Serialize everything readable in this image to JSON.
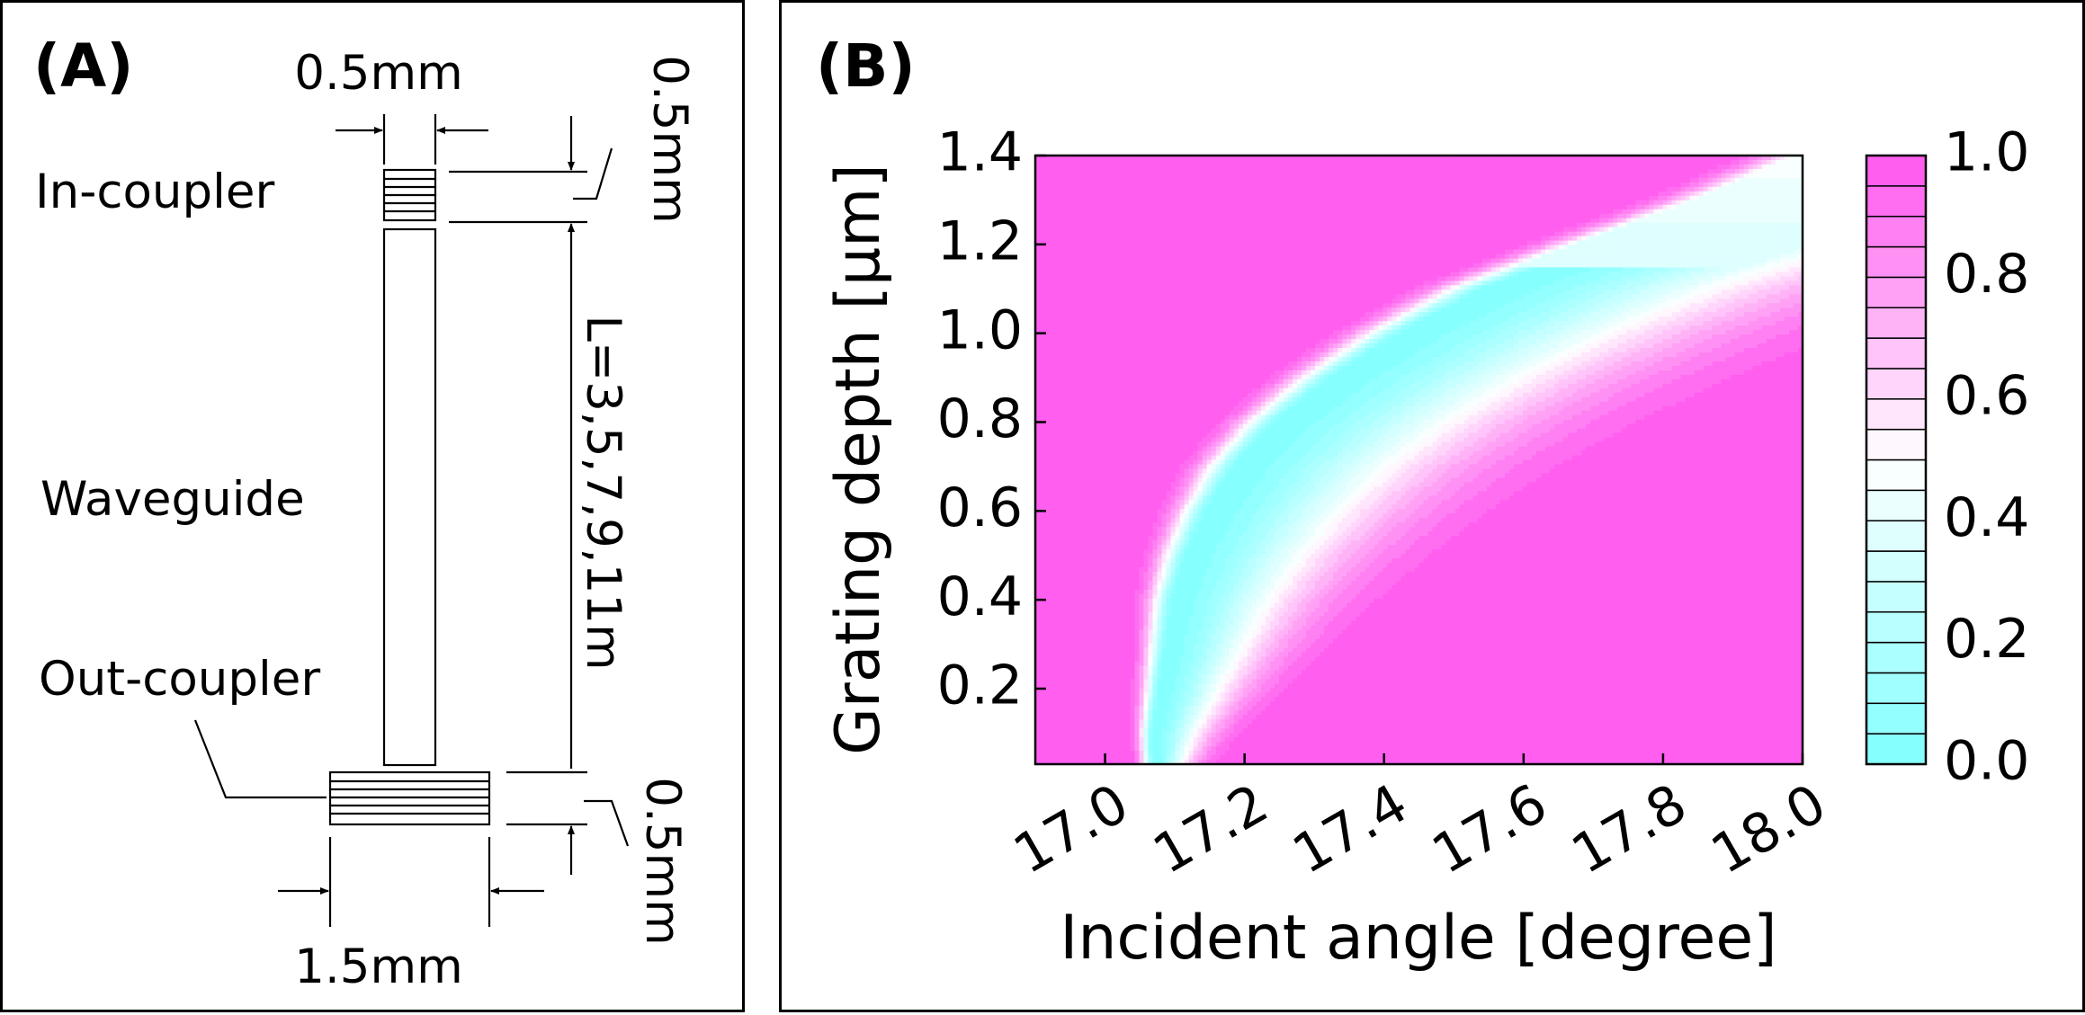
{
  "panel_a": {
    "label": "(A)",
    "in_coupler_label": "In-coupler",
    "waveguide_label": "Waveguide",
    "out_coupler_label": "Out-coupler",
    "dim_top_width": "0.5mm",
    "dim_in_height": "0.5mm",
    "dim_length": "L=3,5,7,9,11m",
    "dim_out_height": "0.5mm",
    "dim_bottom_width": "1.5mm"
  },
  "panel_b": {
    "label": "(B)",
    "chart_data": {
      "type": "heatmap",
      "xlabel": "Incident angle [degree]",
      "ylabel": "Grating depth [μm]",
      "xlim": [
        16.9,
        18.0
      ],
      "ylim": [
        0.03,
        1.4
      ],
      "x_ticks": [
        "17.0",
        "17.2",
        "17.4",
        "17.6",
        "17.8",
        "18.0"
      ],
      "x_tick_values": [
        17.0,
        17.2,
        17.4,
        17.6,
        17.8,
        18.0
      ],
      "y_ticks": [
        "0.2",
        "0.4",
        "0.6",
        "0.8",
        "1.0",
        "1.2",
        "1.4"
      ],
      "y_tick_values": [
        0.2,
        0.4,
        0.6,
        0.8,
        1.0,
        1.2,
        1.4
      ],
      "colorbar": {
        "min": 0.0,
        "max": 1.0,
        "levels": 20,
        "ticks": [
          "0.0",
          "0.2",
          "0.4",
          "0.6",
          "0.8",
          "1.0"
        ],
        "tick_values": [
          0.0,
          0.2,
          0.4,
          0.6,
          0.8,
          1.0
        ],
        "color_low": "#80ffff",
        "color_mid": "#ffffff",
        "color_high": "#ff55ee"
      },
      "minimum_ridge": {
        "depth": [
          0.05,
          0.1,
          0.2,
          0.3,
          0.4,
          0.5,
          0.6,
          0.7,
          0.8,
          0.9,
          1.0,
          1.1,
          1.2,
          1.3,
          1.4
        ],
        "angle": [
          17.07,
          17.07,
          17.08,
          17.09,
          17.1,
          17.12,
          17.15,
          17.19,
          17.25,
          17.33,
          17.43,
          17.55,
          17.72,
          17.9,
          18.05
        ],
        "min_value": 0.02
      }
    }
  }
}
